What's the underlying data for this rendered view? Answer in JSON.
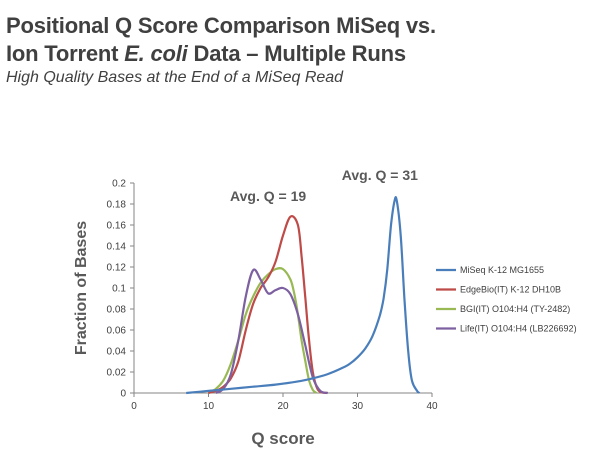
{
  "header": {
    "title_line1": "Positional Q Score Comparison MiSeq vs.",
    "title_line2_prefix": "Ion Torrent ",
    "title_line2_species": "E. coli",
    "title_line2_suffix": " Data – Multiple Runs",
    "subtitle": "High Quality Bases at the End of a MiSeq Read"
  },
  "chart_data": {
    "type": "line",
    "xlabel": "Q score",
    "ylabel": "Fraction of Bases",
    "xlim": [
      0,
      40
    ],
    "ylim": [
      0,
      0.2
    ],
    "xticks": [
      "0",
      "10",
      "20",
      "30",
      "40"
    ],
    "yticks": [
      "0",
      "0.02",
      "0.04",
      "0.06",
      "0.08",
      "0.1",
      "0.12",
      "0.14",
      "0.16",
      "0.18",
      "0.2"
    ],
    "grid": false,
    "legend_position": "right",
    "annotations": [
      {
        "text": "Avg. Q = 19",
        "x": 18,
        "y": 0.183
      },
      {
        "text": "Avg. Q = 31",
        "x": 33,
        "y": 0.203
      }
    ],
    "series": [
      {
        "name": "MiSeq K-12 MG1655",
        "color": "#4a7ebb",
        "points": [
          [
            7,
            0
          ],
          [
            10,
            0.002
          ],
          [
            13,
            0.004
          ],
          [
            16,
            0.006
          ],
          [
            19,
            0.008
          ],
          [
            22,
            0.011
          ],
          [
            24,
            0.014
          ],
          [
            26,
            0.018
          ],
          [
            28,
            0.024
          ],
          [
            29,
            0.028
          ],
          [
            30,
            0.034
          ],
          [
            31,
            0.042
          ],
          [
            32,
            0.054
          ],
          [
            33,
            0.074
          ],
          [
            33.5,
            0.09
          ],
          [
            34,
            0.118
          ],
          [
            34.5,
            0.16
          ],
          [
            35,
            0.184
          ],
          [
            35.3,
            0.182
          ],
          [
            35.8,
            0.15
          ],
          [
            36.3,
            0.09
          ],
          [
            36.8,
            0.04
          ],
          [
            37.3,
            0.012
          ],
          [
            38,
            0.002
          ],
          [
            38.3,
            0
          ]
        ]
      },
      {
        "name": "EdgeBio(IT) K-12 DH10B",
        "color": "#be4b48",
        "points": [
          [
            10,
            0
          ],
          [
            11,
            0.002
          ],
          [
            12,
            0.006
          ],
          [
            13,
            0.014
          ],
          [
            14,
            0.03
          ],
          [
            15,
            0.06
          ],
          [
            16,
            0.085
          ],
          [
            17,
            0.1
          ],
          [
            18,
            0.11
          ],
          [
            19,
            0.125
          ],
          [
            20,
            0.15
          ],
          [
            21,
            0.168
          ],
          [
            22,
            0.16
          ],
          [
            22.5,
            0.13
          ],
          [
            23,
            0.09
          ],
          [
            23.5,
            0.05
          ],
          [
            24,
            0.02
          ],
          [
            24.5,
            0.006
          ],
          [
            25,
            0.001
          ],
          [
            26,
            0
          ]
        ]
      },
      {
        "name": "BGI(IT) O104:H4 (TY-2482)",
        "color": "#98b954",
        "points": [
          [
            10,
            0
          ],
          [
            11,
            0.004
          ],
          [
            12,
            0.012
          ],
          [
            13,
            0.028
          ],
          [
            14,
            0.05
          ],
          [
            15,
            0.075
          ],
          [
            16,
            0.092
          ],
          [
            17,
            0.105
          ],
          [
            18,
            0.113
          ],
          [
            19,
            0.118
          ],
          [
            20,
            0.118
          ],
          [
            21,
            0.108
          ],
          [
            21.5,
            0.095
          ],
          [
            22,
            0.075
          ],
          [
            22.5,
            0.05
          ],
          [
            23,
            0.03
          ],
          [
            23.5,
            0.012
          ],
          [
            24,
            0.003
          ],
          [
            24.5,
            0
          ]
        ]
      },
      {
        "name": "Life(IT)  O104:H4 (LB226692)",
        "color": "#7d60a0",
        "points": [
          [
            11,
            0
          ],
          [
            12,
            0.004
          ],
          [
            13,
            0.018
          ],
          [
            14,
            0.05
          ],
          [
            15,
            0.092
          ],
          [
            16,
            0.117
          ],
          [
            17,
            0.108
          ],
          [
            18,
            0.095
          ],
          [
            19,
            0.098
          ],
          [
            20,
            0.1
          ],
          [
            21,
            0.094
          ],
          [
            22,
            0.075
          ],
          [
            23,
            0.045
          ],
          [
            24,
            0.015
          ],
          [
            25,
            0.002
          ],
          [
            26,
            0
          ]
        ]
      }
    ]
  }
}
